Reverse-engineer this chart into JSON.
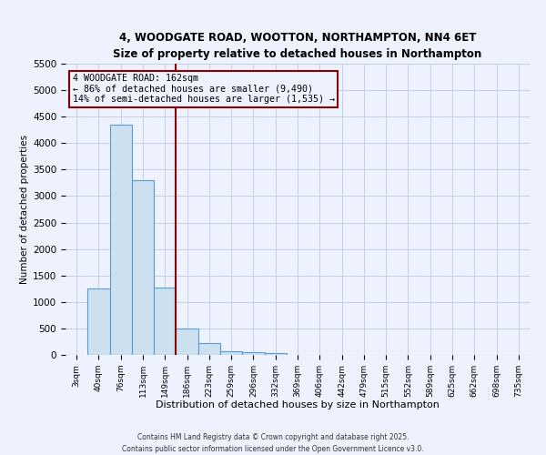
{
  "title1": "4, WOODGATE ROAD, WOOTTON, NORTHAMPTON, NN4 6ET",
  "title2": "Size of property relative to detached houses in Northampton",
  "xlabel": "Distribution of detached houses by size in Northampton",
  "ylabel": "Number of detached properties",
  "bins": [
    "3sqm",
    "40sqm",
    "76sqm",
    "113sqm",
    "149sqm",
    "186sqm",
    "223sqm",
    "259sqm",
    "296sqm",
    "332sqm",
    "369sqm",
    "406sqm",
    "442sqm",
    "479sqm",
    "515sqm",
    "552sqm",
    "589sqm",
    "625sqm",
    "662sqm",
    "698sqm",
    "735sqm"
  ],
  "values": [
    0,
    1250,
    4350,
    3300,
    1280,
    500,
    215,
    75,
    50,
    40,
    0,
    0,
    0,
    0,
    0,
    0,
    0,
    0,
    0,
    0,
    0
  ],
  "bar_color": "#cce0f0",
  "bar_edge_color": "#5b9bd5",
  "vline_color": "#8B0000",
  "vline_pos": 4.5,
  "ylim": [
    0,
    5500
  ],
  "yticks": [
    0,
    500,
    1000,
    1500,
    2000,
    2500,
    3000,
    3500,
    4000,
    4500,
    5000,
    5500
  ],
  "annotation_title": "4 WOODGATE ROAD: 162sqm",
  "annotation_line1": "← 86% of detached houses are smaller (9,490)",
  "annotation_line2": "14% of semi-detached houses are larger (1,535) →",
  "annotation_box_color": "#8B0000",
  "footer1": "Contains HM Land Registry data © Crown copyright and database right 2025.",
  "footer2": "Contains public sector information licensed under the Open Government Licence v3.0.",
  "bg_color": "#eef2ff",
  "grid_color": "#c0cfe8"
}
